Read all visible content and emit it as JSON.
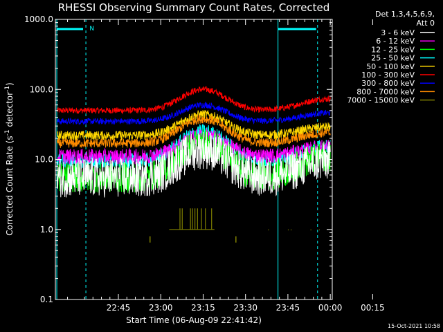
{
  "chart_data": {
    "type": "line",
    "title": "RHESSI Observing Summary Count Rates, Corrected",
    "xlabel": "Start Time (06-Aug-09 22:41:42)",
    "ylabel_main": "Corrected Count Rate (s",
    "ylabel_sup1": "-1",
    "ylabel_mid": " detector",
    "ylabel_sup2": "-1",
    "ylabel_end": ")",
    "y_scale": "log",
    "ylim": [
      0.1,
      1000.0
    ],
    "y_ticks": [
      {
        "value": 0.1,
        "label": "0.1"
      },
      {
        "value": 1.0,
        "label": "1.0"
      },
      {
        "value": 10.0,
        "label": "10.0"
      },
      {
        "value": 100.0,
        "label": "100.0"
      },
      {
        "value": 1000.0,
        "label": "1000.0"
      }
    ],
    "x_range_min": [
      -19.3,
      78.7
    ],
    "x_ticks": [
      {
        "min": 3,
        "label": "22:45"
      },
      {
        "min": 18,
        "label": "23:00"
      },
      {
        "min": 33,
        "label": "23:15"
      },
      {
        "min": 48,
        "label": "23:30"
      },
      {
        "min": 63,
        "label": "23:45"
      },
      {
        "min": 78,
        "label": "00:00"
      },
      {
        "min": 93,
        "label": "00:15"
      }
    ],
    "legend_header": [
      "Det 1,3,4,5,6,9,",
      "Att 0"
    ],
    "legend_position": "right",
    "timestamp": "15-Oct-2021 10:58",
    "series": [
      {
        "name": "3 - 6 keV",
        "color": "#ffffff",
        "base": 5.5,
        "peak1": 14,
        "peak2": 9.5,
        "noise": 0.13
      },
      {
        "name": "6 - 12 keV",
        "color": "#ff00ff",
        "base": 11,
        "peak1": 22,
        "peak2": 15,
        "noise": 0.05
      },
      {
        "name": "12 - 25 keV",
        "color": "#00ff00",
        "base": 5.5,
        "peak1": 17,
        "peak2": 11,
        "noise": 0.1
      },
      {
        "name": "25 - 50 keV",
        "color": "#00ffff",
        "base": 9.5,
        "peak1": 25,
        "peak2": 15,
        "noise": 0.05
      },
      {
        "name": "50 - 100 keV",
        "color": "#ffd700",
        "base": 22,
        "peak1": 44,
        "peak2": 29,
        "noise": 0.03
      },
      {
        "name": "100 - 300 keV",
        "color": "#ff0000",
        "base": 50,
        "peak1": 100,
        "peak2": 73,
        "noise": 0.02
      },
      {
        "name": "300 - 800 keV",
        "color": "#0000ff",
        "base": 35,
        "peak1": 60,
        "peak2": 46,
        "noise": 0.02
      },
      {
        "name": "800 - 7000 keV",
        "color": "#ff8c00",
        "base": 17,
        "peak1": 38,
        "peak2": 24,
        "noise": 0.03
      },
      {
        "name": "7000 - 15000 keV",
        "color": "#808000",
        "base": 1,
        "peak1": 1,
        "peak2": 1,
        "noise": 0
      }
    ],
    "markers": [
      {
        "label": "N",
        "color": "#00ffff"
      }
    ]
  }
}
